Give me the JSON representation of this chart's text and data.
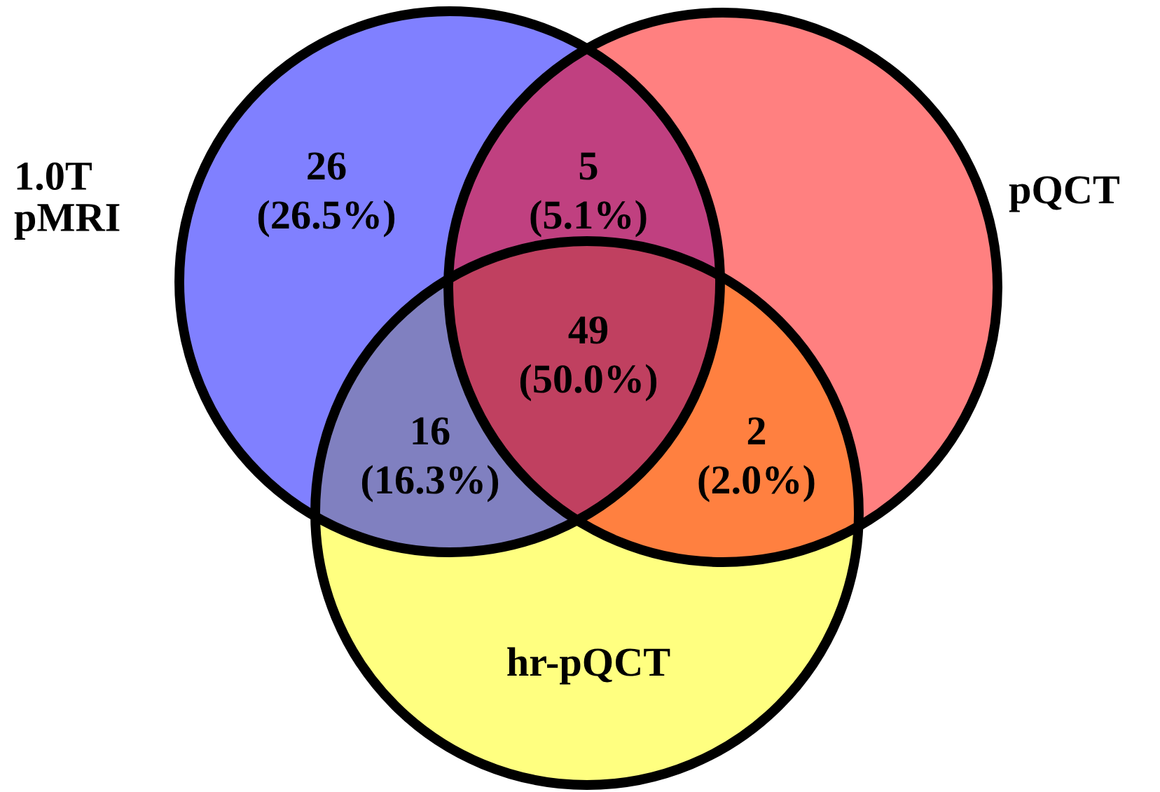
{
  "chart_data": {
    "type": "other",
    "categories": [
      null,
      null,
      null,
      null,
      null,
      null,
      null
    ],
    "values": [
      26,
      5,
      49,
      16,
      2,
      null,
      null
    ],
    "colors": [
      "#8080ff",
      "#c04080",
      "#c04060",
      "#8080c0",
      "#ff8040",
      "#ff8080",
      "#ffff80"
    ],
    "data_labels": true,
    "annotations": [
      "1.0T\npMRI",
      "pQCT",
      "hr-pQCT",
      "(26.5%)",
      "(5.1%)",
      "(50.0%)",
      "(16.3%)",
      "(2.0%)"
    ]
  }
}
